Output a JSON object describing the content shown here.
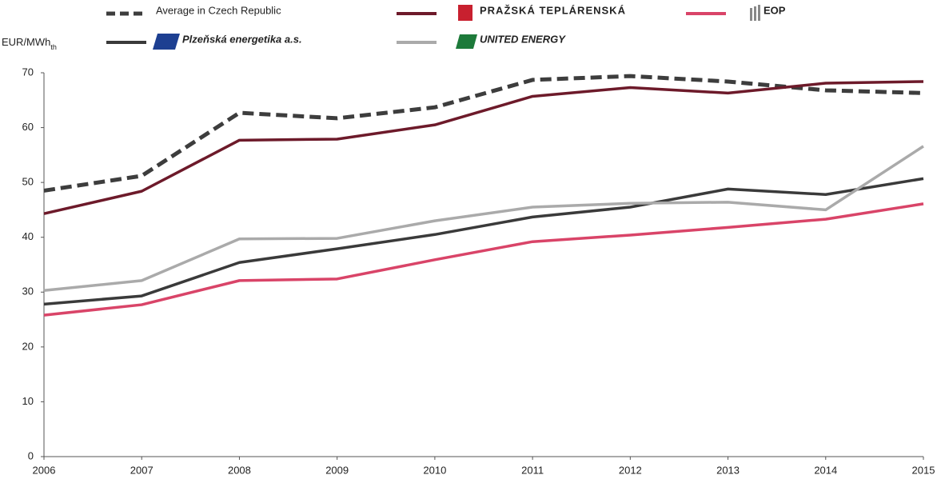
{
  "chart_data": {
    "type": "line",
    "ylabel": {
      "text": "EUR/MWh",
      "subscript": "th"
    },
    "x": [
      2006,
      2007,
      2008,
      2009,
      2010,
      2011,
      2012,
      2013,
      2014,
      2015
    ],
    "xlim": [
      2006,
      2015
    ],
    "xticks": [
      2006,
      2007,
      2008,
      2009,
      2010,
      2011,
      2012,
      2013,
      2014,
      2015
    ],
    "ylim": [
      0,
      70
    ],
    "yticks": [
      0,
      10,
      20,
      30,
      40,
      50,
      60,
      70
    ],
    "grid": false,
    "series": [
      {
        "name": "Average in Czech Republic",
        "color": "#3d3d3d",
        "dashed": true,
        "values": [
          48.5,
          51.2,
          62.7,
          61.7,
          63.7,
          68.7,
          69.4,
          68.4,
          66.8,
          66.3
        ]
      },
      {
        "name": "PRAŽSKÁ TEPLÁRENSKÁ",
        "color": "#6d1a2a",
        "dashed": false,
        "values": [
          44.3,
          48.4,
          57.7,
          57.9,
          60.5,
          65.7,
          67.3,
          66.3,
          68.1,
          68.4
        ]
      },
      {
        "name": "EOP",
        "color": "#d94468",
        "dashed": false,
        "values": [
          25.8,
          27.7,
          32.1,
          32.4,
          35.9,
          39.2,
          40.4,
          41.8,
          43.3,
          46.1
        ]
      },
      {
        "name": "Plzeňská energetika a.s.",
        "color": "#3a3a3a",
        "dashed": false,
        "values": [
          27.8,
          29.3,
          35.4,
          37.9,
          40.5,
          43.7,
          45.5,
          48.8,
          47.8,
          50.7
        ]
      },
      {
        "name": "UNITED ENERGY",
        "color": "#aaaaaa",
        "dashed": false,
        "values": [
          30.3,
          32.1,
          39.7,
          39.8,
          43.0,
          45.5,
          46.2,
          46.4,
          45.0,
          56.6
        ]
      }
    ]
  }
}
